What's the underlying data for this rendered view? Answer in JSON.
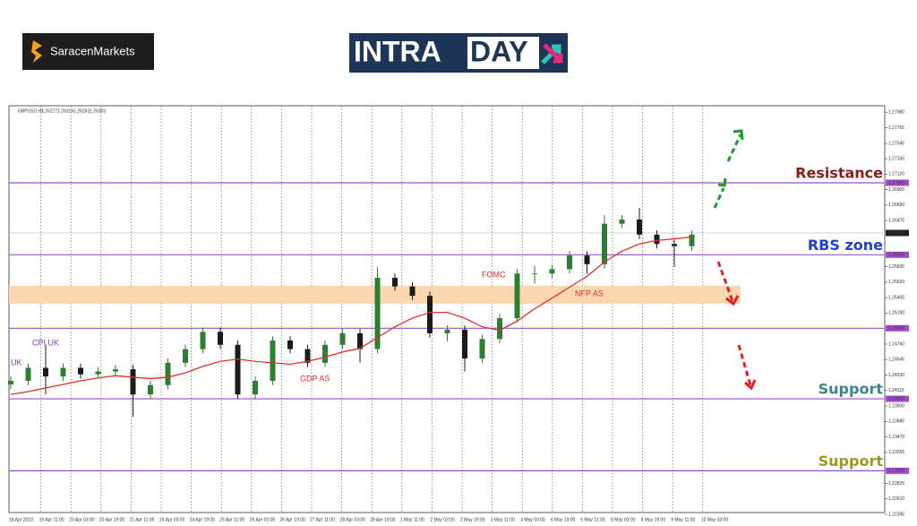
{
  "brand": "SaracenMarkets",
  "banner": [
    "INTRA",
    "DAY"
  ],
  "chart_data": {
    "type": "candlestick",
    "symbol": "GBPUSD,H1",
    "quote": [
      1.26277,
      1.26314,
      1.26263,
      1.26303
    ],
    "ylim": [
      1.2242,
      1.2807
    ],
    "yticks": [
      {
        "value": 1.2798,
        "label": "1.27980"
      },
      1.27765,
      1.27545,
      1.27335,
      {
        "value": 1.2712,
        "label": "1.27120"
      },
      1.26905,
      {
        "value": 1.2669,
        "label": "1.26690"
      },
      1.26475,
      1.25835,
      {
        "value": 1.2562,
        "label": "1.25620"
      },
      1.25405,
      {
        "value": 1.2519,
        "label": "1.25190"
      },
      {
        "value": 1.2476,
        "label": "1.24760"
      },
      1.24545,
      {
        "value": 1.2433,
        "label": "1.24330"
      },
      1.24115,
      {
        "value": 1.239,
        "label": "1.23900"
      },
      1.23685,
      {
        "value": 1.2347,
        "label": "1.23470"
      },
      1.23255,
      1.22825,
      {
        "value": 1.2261,
        "label": "1.22610"
      },
      1.22395
    ],
    "x_labels": [
      "18 Apr 2023",
      "19 Apr 11:00",
      "20 Apr 03:00",
      "20 Apr 19:00",
      "21 Apr 11:00",
      "24 Apr 03:00",
      "24 Apr 19:00",
      "25 Apr 11:00",
      "26 Apr 03:00",
      "26 Apr 19:00",
      "27 Apr 11:00",
      "28 Apr 03:00",
      "28 Apr 19:00",
      "1 May 11:00",
      "2 May 03:00",
      "2 May 19:00",
      "3 May 11:00",
      "4 May 03:00",
      "4 May 19:00",
      "5 May 11:00",
      "8 May 03:00",
      "8 May 19:00",
      "9 May 11:00",
      "10 May 03:00"
    ],
    "levels": [
      {
        "value": 1.27,
        "label": "1.27000",
        "text": "Resistance",
        "text_color": "#8b1a1a"
      },
      {
        "value": 1.26,
        "label": "1.26000",
        "text": "RBS zone",
        "text_color": "#1f3fd0"
      },
      {
        "value": 1.2498,
        "label": "1.24980"
      },
      {
        "value": 1.24,
        "label": "1.24000",
        "text": "Support",
        "text_color": "#3a8686"
      },
      {
        "value": 1.23,
        "label": "1.23000",
        "text": "Support",
        "text_color": "#9a9a1a"
      }
    ],
    "level_color": "#a24bd1",
    "zone": [
      1.2532,
      1.2557
    ],
    "zone_color": "#fbd7b0",
    "annotations": [
      "UK",
      "CPI UK",
      "GDP AS",
      "FOMC",
      "NFP AS"
    ],
    "series": [
      {
        "name": "GBPUSD,H1",
        "up_color": "#2e7d32",
        "down_color": "#1b1b1b",
        "ohlc": [
          [
            1.242,
            1.2431,
            1.2414,
            1.2425
          ],
          [
            1.2425,
            1.2449,
            1.2419,
            1.2443
          ],
          [
            1.2443,
            1.2475,
            1.2406,
            1.2431
          ],
          [
            1.2431,
            1.2449,
            1.2425,
            1.2443
          ],
          [
            1.2443,
            1.2449,
            1.2428,
            1.2434
          ],
          [
            1.2434,
            1.2444,
            1.2428,
            1.2438
          ],
          [
            1.2438,
            1.2447,
            1.2432,
            1.2441
          ],
          [
            1.2441,
            1.2447,
            1.2375,
            1.2406
          ],
          [
            1.2406,
            1.2425,
            1.24,
            1.2419
          ],
          [
            1.2419,
            1.2456,
            1.2413,
            1.245
          ],
          [
            1.245,
            1.2475,
            1.2444,
            1.2469
          ],
          [
            1.2469,
            1.2499,
            1.2463,
            1.2493
          ],
          [
            1.2493,
            1.2499,
            1.2469,
            1.2475
          ],
          [
            1.2475,
            1.2481,
            1.24,
            1.2406
          ],
          [
            1.2406,
            1.2431,
            1.24,
            1.2425
          ],
          [
            1.2425,
            1.2487,
            1.2419,
            1.2481
          ],
          [
            1.2481,
            1.2487,
            1.2463,
            1.2469
          ],
          [
            1.2469,
            1.2475,
            1.2444,
            1.245
          ],
          [
            1.245,
            1.2481,
            1.2444,
            1.2475
          ],
          [
            1.2475,
            1.2497,
            1.2469,
            1.2491
          ],
          [
            1.2491,
            1.2497,
            1.245,
            1.2469
          ],
          [
            1.2469,
            1.2583,
            1.2463,
            1.2568
          ],
          [
            1.2568,
            1.2574,
            1.255,
            1.2556
          ],
          [
            1.2556,
            1.2562,
            1.2537,
            1.2543
          ],
          [
            1.2543,
            1.2549,
            1.2485,
            1.2491
          ],
          [
            1.2491,
            1.2502,
            1.248,
            1.2496
          ],
          [
            1.2496,
            1.2502,
            1.2438,
            1.2456
          ],
          [
            1.2456,
            1.2489,
            1.245,
            1.2483
          ],
          [
            1.2483,
            1.2518,
            1.2477,
            1.2512
          ],
          [
            1.2512,
            1.258,
            1.2506,
            1.2574
          ],
          [
            1.2574,
            1.2585,
            1.256,
            1.2574
          ],
          [
            1.2574,
            1.2586,
            1.2568,
            1.258
          ],
          [
            1.258,
            1.2605,
            1.2574,
            1.2599
          ],
          [
            1.2599,
            1.2605,
            1.2574,
            1.2587
          ],
          [
            1.2587,
            1.2655,
            1.2581,
            1.2643
          ],
          [
            1.2643,
            1.2655,
            1.2637,
            1.2649
          ],
          [
            1.2649,
            1.2665,
            1.2622,
            1.2628
          ],
          [
            1.2628,
            1.2634,
            1.2609,
            1.2615
          ],
          [
            1.2615,
            1.2621,
            1.2583,
            1.2612
          ],
          [
            1.2612,
            1.2634,
            1.2606,
            1.2628
          ]
        ]
      },
      {
        "name": "MA",
        "color": "#e0302a",
        "values": [
          1.2406,
          1.241,
          1.2415,
          1.242,
          1.2425,
          1.2429,
          1.2432,
          1.243,
          1.2428,
          1.243,
          1.2436,
          1.2445,
          1.2452,
          1.2455,
          1.2452,
          1.245,
          1.2448,
          1.2452,
          1.2458,
          1.2465,
          1.247,
          1.2485,
          1.25,
          1.2512,
          1.252,
          1.252,
          1.2512,
          1.25,
          1.2495,
          1.2508,
          1.2525,
          1.254,
          1.2555,
          1.257,
          1.259,
          1.2605,
          1.2615,
          1.262,
          1.2622,
          1.2625
        ]
      }
    ]
  }
}
